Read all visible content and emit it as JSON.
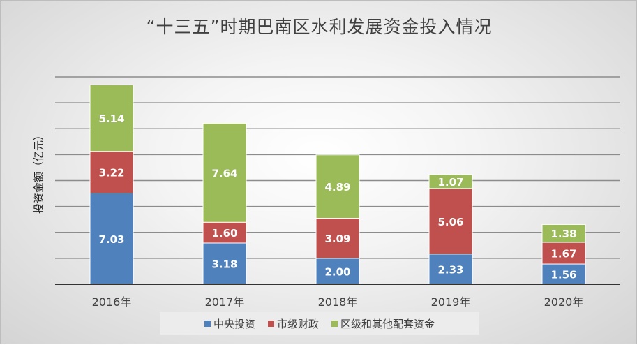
{
  "chart_data": {
    "type": "bar",
    "stacked": true,
    "title": "“十三五”时期巴南区水利发展资金投入情况",
    "ylabel": "投资金额（亿元）",
    "xlabel": "",
    "categories": [
      "2016年",
      "2017年",
      "2018年",
      "2019年",
      "2020年"
    ],
    "series": [
      {
        "name": "中央投资",
        "color": "#4f81bd",
        "values": [
          7.03,
          3.18,
          2.0,
          2.33,
          1.56
        ],
        "labels": [
          "7.03",
          "3.18",
          "2.00",
          "2.33",
          "1.56"
        ]
      },
      {
        "name": "市级财政",
        "color": "#c0504d",
        "values": [
          3.22,
          1.6,
          3.09,
          5.06,
          1.67
        ],
        "labels": [
          "3.22",
          "1.60",
          "3.09",
          "5.06",
          "1.67"
        ]
      },
      {
        "name": "区级和其他配套资金",
        "color": "#9bbb59",
        "values": [
          5.14,
          7.64,
          4.89,
          1.07,
          1.38
        ],
        "labels": [
          "5.14",
          "7.64",
          "4.89",
          "1.07",
          "1.38"
        ]
      }
    ],
    "ylim": [
      0,
      16
    ],
    "gridlines": [
      2,
      4,
      6,
      8,
      10,
      12,
      14,
      16
    ],
    "grid": true,
    "legend_position": "bottom"
  }
}
